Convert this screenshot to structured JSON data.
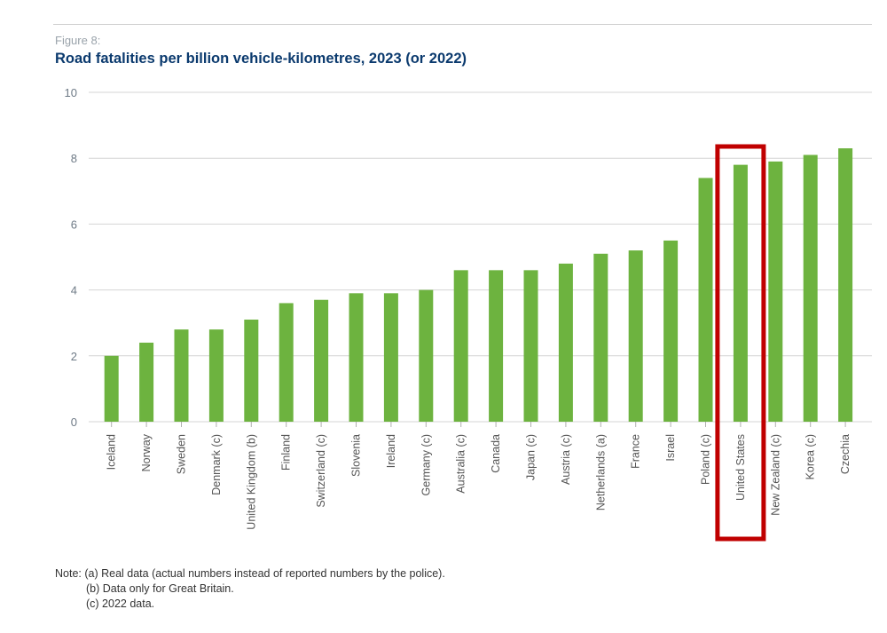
{
  "figure": {
    "label": "Figure 8:",
    "title": "Road fatalities per billion vehicle-kilometres, 2023 (or 2022)"
  },
  "chart_data": {
    "type": "bar",
    "title": "Road fatalities per billion vehicle-kilometres, 2023 (or 2022)",
    "xlabel": "",
    "ylabel": "",
    "ylim": [
      0,
      10
    ],
    "yticks": [
      0,
      2,
      4,
      6,
      8,
      10
    ],
    "grid": true,
    "categories": [
      "Iceland",
      "Norway",
      "Sweden",
      "Denmark (c)",
      "United Kingdom (b)",
      "Finland",
      "Switzerland (c)",
      "Slovenia",
      "Ireland",
      "Germany (c)",
      "Australia (c)",
      "Canada",
      "Japan (c)",
      "Austria (c)",
      "Netherlands (a)",
      "France",
      "Israel",
      "Poland (c)",
      "United States",
      "New Zealand (c)",
      "Korea (c)",
      "Czechia"
    ],
    "values": [
      2.0,
      2.4,
      2.8,
      2.8,
      3.1,
      3.6,
      3.7,
      3.9,
      3.9,
      4.0,
      4.6,
      4.6,
      4.6,
      4.8,
      5.1,
      5.2,
      5.5,
      7.4,
      7.8,
      7.9,
      8.1,
      8.3
    ],
    "highlight": "United States",
    "bar_color": "#6db33f",
    "highlight_color": "#c00000",
    "grid_color": "#d4d4d4",
    "tick_color": "#6e7a86"
  },
  "notes": {
    "a": "Note: (a) Real data (actual numbers instead of reported numbers by the police).",
    "b": "(b) Data only for Great Britain.",
    "c": "(c) 2022 data."
  }
}
